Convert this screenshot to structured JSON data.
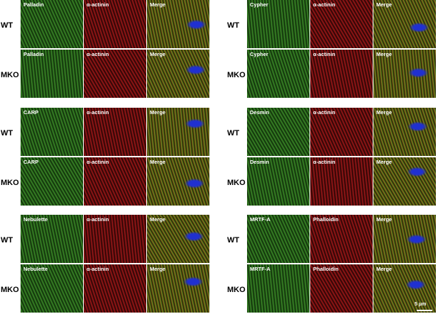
{
  "row_labels": {
    "wt": "WT",
    "mko": "MKO"
  },
  "panels": {
    "palladin": "Palladin",
    "cypher": "Cypher",
    "carp": "CARP",
    "desmin": "Desmin",
    "nebulette": "Nebulette",
    "mrtfa": "MRTF-A",
    "actinin": "α-actinin",
    "phalloidin": "Phalloidin",
    "merge": "Merge"
  },
  "scale_bar": "5 μm",
  "colors": {
    "green_channel": "#3c8a28",
    "red_channel": "#a01818",
    "merge_channel": "#8a7a20",
    "nucleus": "#2030d0"
  }
}
